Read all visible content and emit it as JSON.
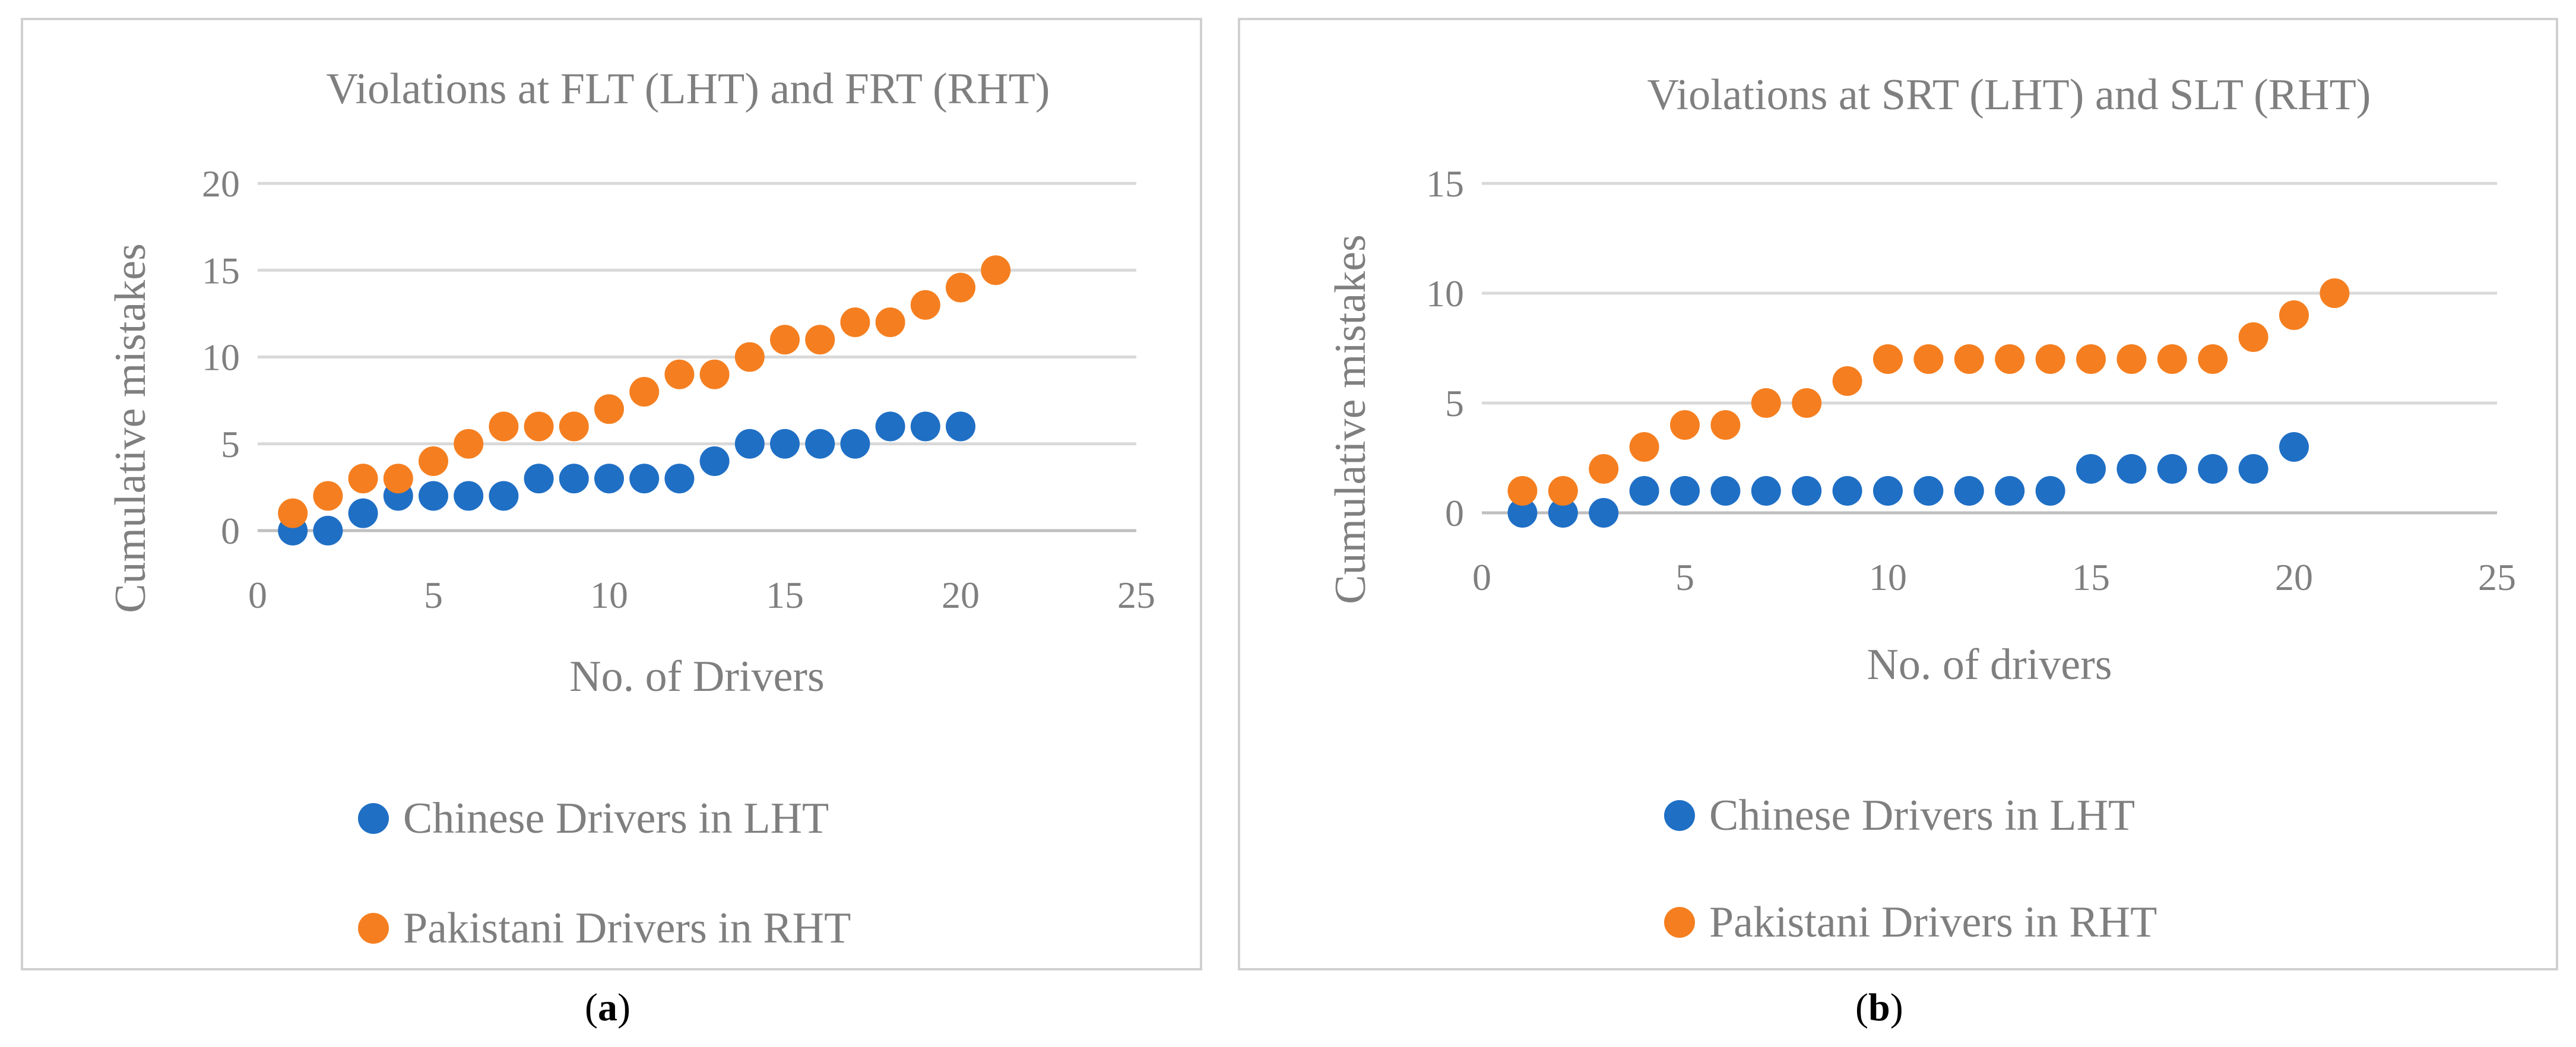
{
  "colors": {
    "chinese": "#1F6FC5",
    "pakistani": "#F57F20",
    "text": "#7F7F7F",
    "grid": "#D9D9D9"
  },
  "panels": [
    {
      "caption_open": "(",
      "caption_letter": "a",
      "caption_close": ")",
      "chart_data": {
        "type": "scatter",
        "title": "Violations at FLT (LHT) and FRT (RHT)",
        "xlabel": "No. of Drivers",
        "ylabel": "Cumulative mistakes",
        "xlim": [
          0,
          25
        ],
        "ylim": [
          0,
          20
        ],
        "xticks": [
          0,
          5,
          10,
          15,
          20,
          25
        ],
        "yticks": [
          0,
          5,
          10,
          15,
          20
        ],
        "grid": "horizontal",
        "legend_position": "bottom",
        "series": [
          {
            "name": "Chinese Drivers in LHT",
            "color": "#1F6FC5",
            "x": [
              1,
              2,
              3,
              4,
              5,
              6,
              7,
              8,
              9,
              10,
              11,
              12,
              13,
              14,
              15,
              16,
              17,
              18,
              19,
              20
            ],
            "y": [
              0,
              0,
              1,
              2,
              2,
              2,
              2,
              3,
              3,
              3,
              3,
              3,
              4,
              5,
              5,
              5,
              5,
              6,
              6,
              6
            ]
          },
          {
            "name": "Pakistani Drivers in RHT",
            "color": "#F57F20",
            "x": [
              1,
              2,
              3,
              4,
              5,
              6,
              7,
              8,
              9,
              10,
              11,
              12,
              13,
              14,
              15,
              16,
              17,
              18,
              19,
              20,
              21
            ],
            "y": [
              1,
              2,
              3,
              3,
              4,
              5,
              6,
              6,
              6,
              7,
              8,
              9,
              9,
              10,
              11,
              11,
              12,
              12,
              13,
              14,
              15
            ]
          }
        ]
      }
    },
    {
      "caption_open": "(",
      "caption_letter": "b",
      "caption_close": ")",
      "chart_data": {
        "type": "scatter",
        "title": "Violations at SRT (LHT) and SLT (RHT)",
        "xlabel": "No. of drivers",
        "ylabel": "Cumulative mistakes",
        "xlim": [
          0,
          25
        ],
        "ylim": [
          0,
          15
        ],
        "xticks": [
          0,
          5,
          10,
          15,
          20,
          25
        ],
        "yticks": [
          0,
          5,
          10,
          15
        ],
        "grid": "horizontal",
        "legend_position": "bottom",
        "series": [
          {
            "name": "Chinese Drivers in LHT",
            "color": "#1F6FC5",
            "x": [
              1,
              2,
              3,
              4,
              5,
              6,
              7,
              8,
              9,
              10,
              11,
              12,
              13,
              14,
              15,
              16,
              17,
              18,
              19,
              20
            ],
            "y": [
              0,
              0,
              0,
              1,
              1,
              1,
              1,
              1,
              1,
              1,
              1,
              1,
              1,
              1,
              2,
              2,
              2,
              2,
              2,
              3
            ]
          },
          {
            "name": "Pakistani Drivers in RHT",
            "color": "#F57F20",
            "x": [
              1,
              2,
              3,
              4,
              5,
              6,
              7,
              8,
              9,
              10,
              11,
              12,
              13,
              14,
              15,
              16,
              17,
              18,
              19,
              20,
              21
            ],
            "y": [
              1,
              1,
              2,
              3,
              4,
              4,
              5,
              5,
              6,
              7,
              7,
              7,
              7,
              7,
              7,
              7,
              7,
              7,
              8,
              9,
              10
            ]
          }
        ]
      }
    }
  ]
}
